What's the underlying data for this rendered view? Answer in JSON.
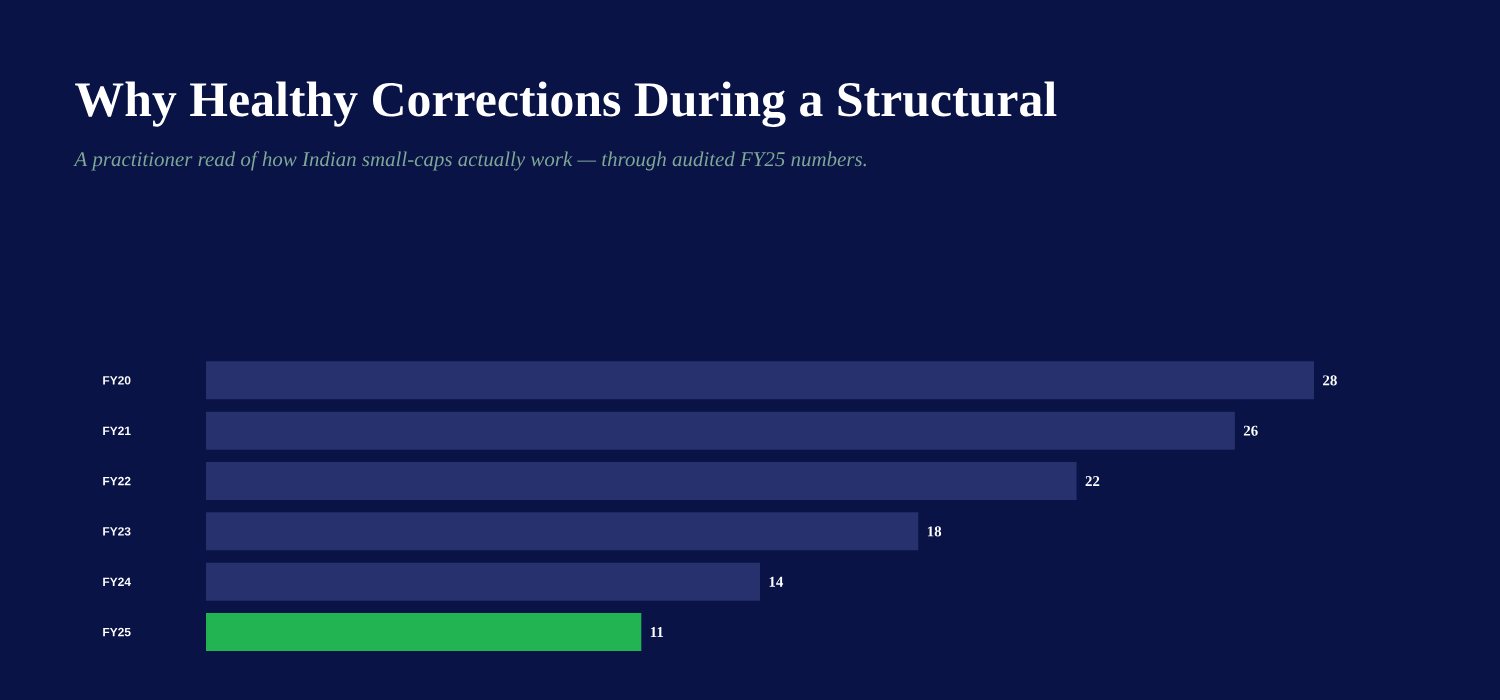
{
  "chart_data": {
    "type": "bar",
    "orientation": "horizontal",
    "title": "Why Healthy Corrections During a Structural",
    "subtitle": "A practitioner read of how Indian small-caps actually work — through audited FY25 numbers.",
    "categories": [
      "FY20",
      "FY21",
      "FY22",
      "FY23",
      "FY24",
      "FY25"
    ],
    "values": [
      28,
      26,
      22,
      18,
      14,
      11
    ],
    "colors": [
      "#27316e",
      "#27316e",
      "#27316e",
      "#27316e",
      "#27316e",
      "#22b352"
    ],
    "data_labels": true
  }
}
